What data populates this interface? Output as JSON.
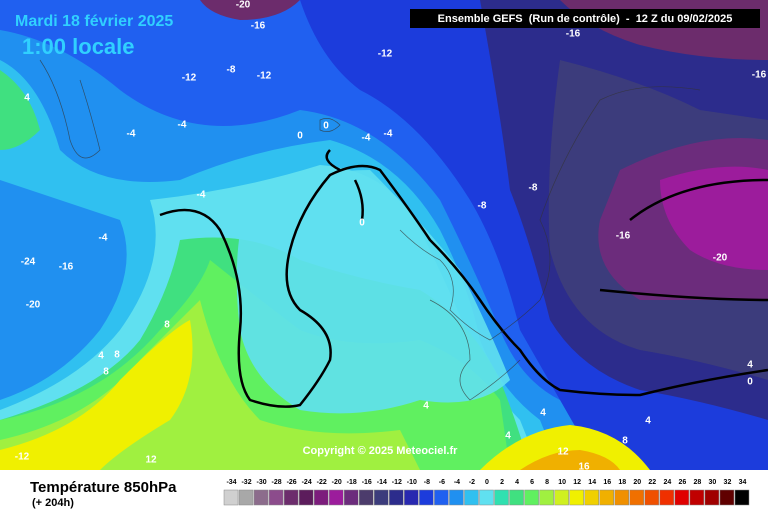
{
  "header": {
    "date": "Mardi 18 février 2025",
    "time": "1:00 locale",
    "model": "Ensemble GEFS  (Run de contrôle)  -  12 Z du 09/02/2025"
  },
  "footer": {
    "title": "Température 850hPa",
    "lead": "(+ 204h)",
    "copyright": "Copyright © 2025 Meteociel.fr"
  },
  "legend": {
    "values": [
      -34,
      -32,
      -30,
      -28,
      -26,
      -24,
      -22,
      -20,
      -18,
      -16,
      -14,
      -12,
      -10,
      -8,
      -6,
      -4,
      -2,
      0,
      2,
      4,
      6,
      8,
      10,
      12,
      14,
      16,
      18,
      20,
      22,
      24,
      26,
      28,
      30,
      32,
      34
    ],
    "colors": [
      "#d0d0d0",
      "#a8a8a8",
      "#8c6c8c",
      "#8c4c8c",
      "#6c2c6c",
      "#5c1c5c",
      "#7c1c7c",
      "#9c1c9c",
      "#6c2c7c",
      "#4c3c6c",
      "#3c3c7c",
      "#2c2c8c",
      "#2828b0",
      "#1c3cdc",
      "#2060f0",
      "#2090f0",
      "#30c0f0",
      "#60e0f0",
      "#30e0b0",
      "#40e080",
      "#60f060",
      "#a0f040",
      "#d0f020",
      "#f0f000",
      "#f0d000",
      "#f0b000",
      "#f09000",
      "#f07000",
      "#f05000",
      "#f03000",
      "#e00000",
      "#c00000",
      "#a00000",
      "#600000",
      "#000000"
    ]
  },
  "contour_labels": [
    "-20",
    "-16",
    "-16",
    "-16",
    "-12",
    "-12",
    "-8",
    "-12",
    "4",
    "-4",
    "-4",
    "0",
    "0",
    "-4",
    "-4",
    "-8",
    "-8",
    "-4",
    "0",
    "-16",
    "-20",
    "-4",
    "-16",
    "-24",
    "-20",
    "8",
    "4",
    "8",
    "8",
    "-12",
    "12",
    "4",
    "4",
    "4",
    "8",
    "12",
    "16",
    "4",
    "0",
    "4"
  ]
}
